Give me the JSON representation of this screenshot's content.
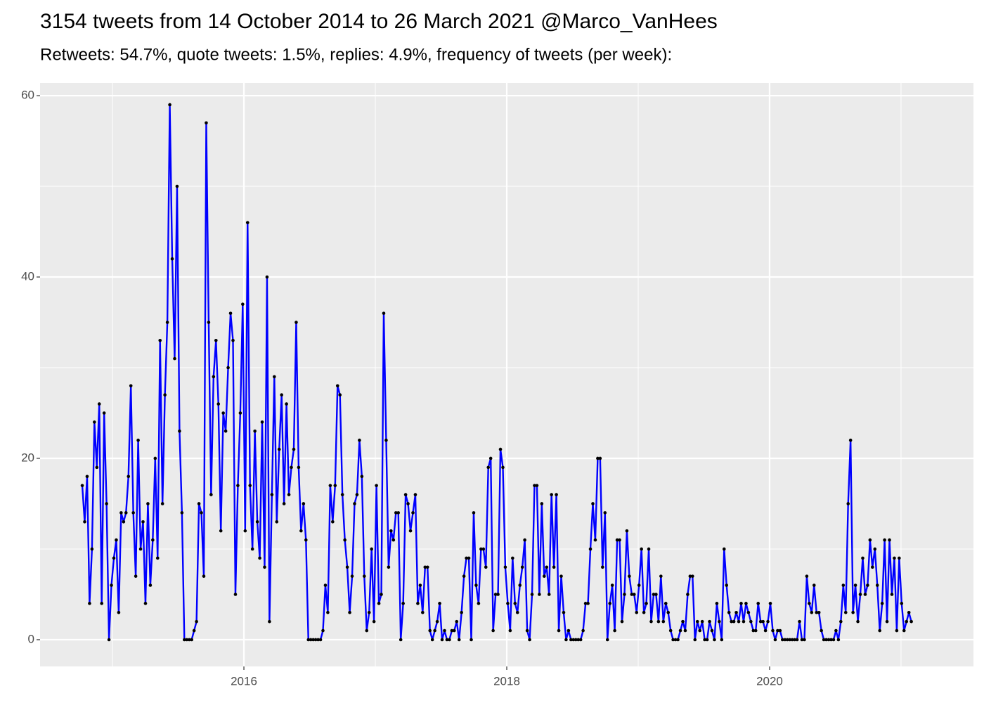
{
  "chart_data": {
    "type": "line",
    "title": "3154 tweets from 14 October 2014 to 26 March 2021 @Marco_VanHees",
    "subtitle": "Retweets: 54.7%, quote tweets: 1.5%, replies: 4.9%, frequency of tweets (per week):",
    "color": "#0000ff",
    "point_color": "#000000",
    "xlim": [
      2014.449,
      2021.551
    ],
    "xticks": [
      2016,
      2018,
      2020
    ],
    "xminor": [
      2015,
      2017,
      2019,
      2021
    ],
    "ylim": [
      -2.95,
      61.4
    ],
    "yticks": [
      0,
      20,
      40,
      60
    ],
    "yminor": [
      10,
      30,
      50
    ],
    "grid": true,
    "x": [
      2014.77,
      2014.7885,
      2014.807,
      2014.8255,
      2014.844,
      2014.8625,
      2014.881,
      2014.8995,
      2014.918,
      2014.9365,
      2014.955,
      2014.9735,
      2014.992,
      2015.0105,
      2015.029,
      2015.0475,
      2015.066,
      2015.0845,
      2015.103,
      2015.1215,
      2015.14,
      2015.1585,
      2015.177,
      2015.1955,
      2015.214,
      2015.2325,
      2015.251,
      2015.2695,
      2015.288,
      2015.3065,
      2015.325,
      2015.3435,
      2015.362,
      2015.3805,
      2015.399,
      2015.4175,
      2015.436,
      2015.4545,
      2015.473,
      2015.4915,
      2015.51,
      2015.5285,
      2015.547,
      2015.5655,
      2015.584,
      2015.6025,
      2015.621,
      2015.6395,
      2015.658,
      2015.6765,
      2015.695,
      2015.7135,
      2015.732,
      2015.7505,
      2015.769,
      2015.7875,
      2015.806,
      2015.8245,
      2015.843,
      2015.8615,
      2015.88,
      2015.8985,
      2015.917,
      2015.9355,
      2015.954,
      2015.9725,
      2015.991,
      2016.0095,
      2016.028,
      2016.0465,
      2016.065,
      2016.0835,
      2016.102,
      2016.1205,
      2016.139,
      2016.1575,
      2016.176,
      2016.1945,
      2016.213,
      2016.2315,
      2016.25,
      2016.2685,
      2016.287,
      2016.3055,
      2016.324,
      2016.3425,
      2016.361,
      2016.3795,
      2016.398,
      2016.4165,
      2016.435,
      2016.4535,
      2016.472,
      2016.4905,
      2016.509,
      2016.5275,
      2016.546,
      2016.5645,
      2016.583,
      2016.6015,
      2016.62,
      2016.6385,
      2016.657,
      2016.6755,
      2016.694,
      2016.7125,
      2016.731,
      2016.7495,
      2016.768,
      2016.7865,
      2016.805,
      2016.8235,
      2016.842,
      2016.8605,
      2016.879,
      2016.8975,
      2016.916,
      2016.9345,
      2016.953,
      2016.9715,
      2016.99,
      2017.0085,
      2017.027,
      2017.0455,
      2017.064,
      2017.0825,
      2017.101,
      2017.1195,
      2017.138,
      2017.1565,
      2017.175,
      2017.1935,
      2017.212,
      2017.2305,
      2017.249,
      2017.2675,
      2017.286,
      2017.3045,
      2017.323,
      2017.3415,
      2017.36,
      2017.3785,
      2017.397,
      2017.4155,
      2017.434,
      2017.4525,
      2017.471,
      2017.4895,
      2017.508,
      2017.5265,
      2017.545,
      2017.5635,
      2017.582,
      2017.6005,
      2017.619,
      2017.6375,
      2017.656,
      2017.6745,
      2017.693,
      2017.7115,
      2017.73,
      2017.7485,
      2017.767,
      2017.7855,
      2017.804,
      2017.8225,
      2017.841,
      2017.8595,
      2017.878,
      2017.8965,
      2017.915,
      2017.9335,
      2017.952,
      2017.9705,
      2017.989,
      2018.0075,
      2018.026,
      2018.0445,
      2018.063,
      2018.0815,
      2018.1,
      2018.1185,
      2018.137,
      2018.1555,
      2018.174,
      2018.1925,
      2018.211,
      2018.2295,
      2018.248,
      2018.2665,
      2018.285,
      2018.3035,
      2018.322,
      2018.3405,
      2018.359,
      2018.3775,
      2018.396,
      2018.4145,
      2018.433,
      2018.4515,
      2018.47,
      2018.4885,
      2018.507,
      2018.5255,
      2018.544,
      2018.5625,
      2018.581,
      2018.5995,
      2018.618,
      2018.6365,
      2018.655,
      2018.6735,
      2018.692,
      2018.7105,
      2018.729,
      2018.7475,
      2018.766,
      2018.7845,
      2018.803,
      2018.8215,
      2018.84,
      2018.8585,
      2018.877,
      2018.8955,
      2018.914,
      2018.9325,
      2018.951,
      2018.9695,
      2018.988,
      2019.0065,
      2019.025,
      2019.0435,
      2019.062,
      2019.0805,
      2019.099,
      2019.1175,
      2019.136,
      2019.1545,
      2019.173,
      2019.1915,
      2019.21,
      2019.2285,
      2019.247,
      2019.2655,
      2019.284,
      2019.3025,
      2019.321,
      2019.3395,
      2019.358,
      2019.3765,
      2019.395,
      2019.4135,
      2019.432,
      2019.4505,
      2019.469,
      2019.4875,
      2019.506,
      2019.5245,
      2019.543,
      2019.5615,
      2019.58,
      2019.5985,
      2019.617,
      2019.6355,
      2019.654,
      2019.6725,
      2019.691,
      2019.7095,
      2019.728,
      2019.7465,
      2019.765,
      2019.7835,
      2019.802,
      2019.8205,
      2019.839,
      2019.8575,
      2019.876,
      2019.8945,
      2019.913,
      2019.9315,
      2019.95,
      2019.9685,
      2019.987,
      2020.0055,
      2020.024,
      2020.0425,
      2020.061,
      2020.0795,
      2020.098,
      2020.1165,
      2020.135,
      2020.1535,
      2020.172,
      2020.1905,
      2020.209,
      2020.2275,
      2020.246,
      2020.2645,
      2020.283,
      2020.3015,
      2020.32,
      2020.3385,
      2020.357,
      2020.3755,
      2020.394,
      2020.4125,
      2020.431,
      2020.4495,
      2020.468,
      2020.4865,
      2020.505,
      2020.5235,
      2020.542,
      2020.5605,
      2020.579,
      2020.5975,
      2020.616,
      2020.6345,
      2020.653,
      2020.6715,
      2020.69,
      2020.7085,
      2020.727,
      2020.7455,
      2020.764,
      2020.7825,
      2020.801,
      2020.8195,
      2020.838,
      2020.8565,
      2020.875,
      2020.8935,
      2020.912,
      2020.9305,
      2020.949,
      2020.9675,
      2020.986,
      2021.0045,
      2021.023,
      2021.0415,
      2021.06,
      2021.0785
    ],
    "values": [
      17,
      13,
      18,
      4,
      10,
      24,
      19,
      26,
      4,
      25,
      15,
      0,
      6,
      9,
      11,
      3,
      14,
      13,
      14,
      18,
      28,
      14,
      7,
      22,
      10,
      13,
      4,
      15,
      6,
      11,
      20,
      9,
      33,
      15,
      27,
      35,
      59,
      42,
      31,
      50,
      23,
      14,
      0,
      0,
      0,
      0,
      1,
      2,
      15,
      14,
      7,
      57,
      35,
      16,
      29,
      33,
      26,
      12,
      25,
      23,
      30,
      36,
      33,
      5,
      17,
      25,
      37,
      12,
      46,
      17,
      10,
      23,
      13,
      9,
      24,
      8,
      40,
      2,
      16,
      29,
      13,
      21,
      27,
      15,
      26,
      16,
      19,
      21,
      35,
      19,
      12,
      15,
      11,
      0,
      0,
      0,
      0,
      0,
      0,
      1,
      6,
      3,
      17,
      13,
      17,
      28,
      27,
      16,
      11,
      8,
      3,
      7,
      15,
      16,
      22,
      18,
      7,
      1,
      3,
      10,
      2,
      17,
      4,
      5,
      36,
      22,
      8,
      12,
      11,
      14,
      14,
      0,
      4,
      16,
      15,
      12,
      14,
      16,
      4,
      6,
      3,
      8,
      8,
      1,
      0,
      1,
      2,
      4,
      0,
      1,
      0,
      0,
      1,
      1,
      2,
      0,
      3,
      7,
      9,
      9,
      0,
      14,
      6,
      4,
      10,
      10,
      8,
      19,
      20,
      1,
      5,
      5,
      21,
      19,
      8,
      4,
      1,
      9,
      4,
      3,
      6,
      8,
      11,
      1,
      0,
      5,
      17,
      17,
      5,
      15,
      7,
      8,
      5,
      16,
      8,
      16,
      1,
      7,
      3,
      0,
      1,
      0,
      0,
      0,
      0,
      0,
      1,
      4,
      4,
      10,
      15,
      11,
      20,
      20,
      8,
      14,
      0,
      4,
      6,
      1,
      11,
      11,
      2,
      5,
      12,
      7,
      5,
      5,
      3,
      6,
      10,
      3,
      4,
      10,
      2,
      5,
      5,
      2,
      7,
      2,
      4,
      3,
      1,
      0,
      0,
      0,
      1,
      2,
      1,
      5,
      7,
      7,
      0,
      2,
      1,
      2,
      0,
      0,
      2,
      1,
      0,
      4,
      2,
      0,
      10,
      6,
      3,
      2,
      2,
      3,
      2,
      4,
      2,
      4,
      3,
      2,
      1,
      1,
      4,
      2,
      2,
      1,
      2,
      4,
      1,
      0,
      1,
      1,
      0,
      0,
      0,
      0,
      0,
      0,
      0,
      2,
      0,
      0,
      7,
      4,
      3,
      6,
      3,
      3,
      1,
      0,
      0,
      0,
      0,
      0,
      1,
      0,
      2,
      6,
      3,
      15,
      22,
      3,
      6,
      2,
      5,
      9,
      5,
      6,
      11,
      8,
      10,
      6,
      1,
      4,
      11,
      2,
      11,
      5,
      9,
      1,
      9,
      4,
      1,
      2,
      3,
      2
    ]
  }
}
